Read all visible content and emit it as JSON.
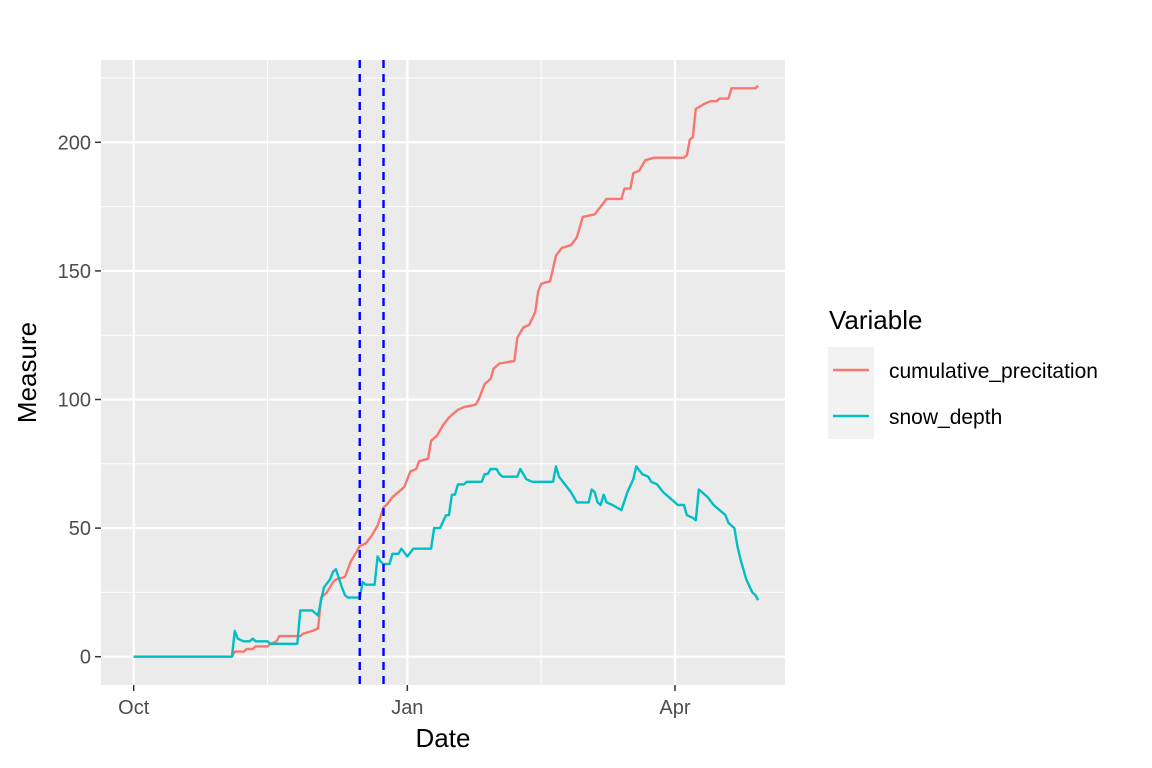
{
  "chart_data": {
    "type": "line",
    "title": "",
    "xlabel": "Date",
    "ylabel": "Measure",
    "xlim": [
      "2022-09-20",
      "2023-05-08"
    ],
    "ylim": [
      -11,
      232
    ],
    "x_ticks": [
      {
        "date": "2022-10-01",
        "label": "Oct"
      },
      {
        "date": "2023-01-01",
        "label": "Jan"
      },
      {
        "date": "2023-04-01",
        "label": "Apr"
      }
    ],
    "x_minor_ticks": [
      "2022-11-15",
      "2023-02-15"
    ],
    "y_ticks": [
      0,
      50,
      100,
      150,
      200
    ],
    "y_minor_ticks": [
      25,
      75,
      125,
      175,
      225
    ],
    "grid": true,
    "panel_background": "#ebebeb",
    "vlines": {
      "dates": [
        "2022-12-16",
        "2022-12-24"
      ],
      "color": "#0000ff",
      "style": "dashed"
    },
    "legend": {
      "title": "Variable",
      "position": "right"
    },
    "series": [
      {
        "name": "cumulative_precitation",
        "color": "#f8766d",
        "points": [
          [
            "2022-10-01",
            0
          ],
          [
            "2022-11-03",
            0
          ],
          [
            "2022-11-04",
            2
          ],
          [
            "2022-11-07",
            2
          ],
          [
            "2022-11-08",
            3
          ],
          [
            "2022-11-10",
            3
          ],
          [
            "2022-11-11",
            4
          ],
          [
            "2022-11-15",
            4
          ],
          [
            "2022-11-16",
            5
          ],
          [
            "2022-11-18",
            6
          ],
          [
            "2022-11-19",
            8
          ],
          [
            "2022-11-26",
            8
          ],
          [
            "2022-11-27",
            9
          ],
          [
            "2022-11-30",
            10
          ],
          [
            "2022-12-02",
            11
          ],
          [
            "2022-12-03",
            23
          ],
          [
            "2022-12-05",
            25
          ],
          [
            "2022-12-07",
            29
          ],
          [
            "2022-12-08",
            30
          ],
          [
            "2022-12-11",
            31
          ],
          [
            "2022-12-13",
            37
          ],
          [
            "2022-12-15",
            41
          ],
          [
            "2022-12-16",
            43
          ],
          [
            "2022-12-18",
            44
          ],
          [
            "2022-12-20",
            47
          ],
          [
            "2022-12-22",
            51
          ],
          [
            "2022-12-24",
            58
          ],
          [
            "2022-12-25",
            59
          ],
          [
            "2022-12-27",
            62
          ],
          [
            "2022-12-29",
            64
          ],
          [
            "2022-12-31",
            66
          ],
          [
            "2023-01-02",
            72
          ],
          [
            "2023-01-04",
            73
          ],
          [
            "2023-01-05",
            76
          ],
          [
            "2023-01-08",
            77
          ],
          [
            "2023-01-09",
            84
          ],
          [
            "2023-01-11",
            86
          ],
          [
            "2023-01-13",
            90
          ],
          [
            "2023-01-15",
            93
          ],
          [
            "2023-01-18",
            96
          ],
          [
            "2023-01-20",
            97
          ],
          [
            "2023-01-24",
            98
          ],
          [
            "2023-01-25",
            100
          ],
          [
            "2023-01-27",
            106
          ],
          [
            "2023-01-29",
            108
          ],
          [
            "2023-01-30",
            112
          ],
          [
            "2023-02-01",
            114
          ],
          [
            "2023-02-06",
            115
          ],
          [
            "2023-02-07",
            124
          ],
          [
            "2023-02-09",
            128
          ],
          [
            "2023-02-11",
            129
          ],
          [
            "2023-02-13",
            134
          ],
          [
            "2023-02-14",
            142
          ],
          [
            "2023-02-15",
            145
          ],
          [
            "2023-02-18",
            146
          ],
          [
            "2023-02-20",
            156
          ],
          [
            "2023-02-22",
            159
          ],
          [
            "2023-02-25",
            160
          ],
          [
            "2023-02-27",
            163
          ],
          [
            "2023-03-01",
            171
          ],
          [
            "2023-03-05",
            172
          ],
          [
            "2023-03-09",
            178
          ],
          [
            "2023-03-14",
            178
          ],
          [
            "2023-03-15",
            182
          ],
          [
            "2023-03-17",
            182
          ],
          [
            "2023-03-18",
            188
          ],
          [
            "2023-03-20",
            189
          ],
          [
            "2023-03-22",
            193
          ],
          [
            "2023-03-25",
            194
          ],
          [
            "2023-04-04",
            194
          ],
          [
            "2023-04-05",
            195
          ],
          [
            "2023-04-06",
            201
          ],
          [
            "2023-04-07",
            202
          ],
          [
            "2023-04-08",
            213
          ],
          [
            "2023-04-11",
            215
          ],
          [
            "2023-04-13",
            216
          ],
          [
            "2023-04-15",
            216
          ],
          [
            "2023-04-16",
            217
          ],
          [
            "2023-04-19",
            217
          ],
          [
            "2023-04-20",
            221
          ],
          [
            "2023-04-28",
            221
          ],
          [
            "2023-04-29",
            222
          ]
        ]
      },
      {
        "name": "snow_depth",
        "color": "#00bfc4",
        "points": [
          [
            "2022-10-01",
            0
          ],
          [
            "2022-11-03",
            0
          ],
          [
            "2022-11-04",
            10
          ],
          [
            "2022-11-05",
            7
          ],
          [
            "2022-11-07",
            6
          ],
          [
            "2022-11-09",
            6
          ],
          [
            "2022-11-10",
            7
          ],
          [
            "2022-11-11",
            6
          ],
          [
            "2022-11-15",
            6
          ],
          [
            "2022-11-16",
            5
          ],
          [
            "2022-11-25",
            5
          ],
          [
            "2022-11-26",
            18
          ],
          [
            "2022-11-30",
            18
          ],
          [
            "2022-12-02",
            16
          ],
          [
            "2022-12-03",
            22
          ],
          [
            "2022-12-04",
            27
          ],
          [
            "2022-12-06",
            30
          ],
          [
            "2022-12-07",
            33
          ],
          [
            "2022-12-08",
            34
          ],
          [
            "2022-12-10",
            27
          ],
          [
            "2022-12-11",
            24
          ],
          [
            "2022-12-12",
            23
          ],
          [
            "2022-12-16",
            23
          ],
          [
            "2022-12-17",
            29
          ],
          [
            "2022-12-18",
            28
          ],
          [
            "2022-12-21",
            28
          ],
          [
            "2022-12-22",
            39
          ],
          [
            "2022-12-23",
            37
          ],
          [
            "2022-12-24",
            36
          ],
          [
            "2022-12-26",
            36
          ],
          [
            "2022-12-27",
            40
          ],
          [
            "2022-12-29",
            40
          ],
          [
            "2022-12-30",
            42
          ],
          [
            "2023-01-01",
            39
          ],
          [
            "2023-01-03",
            42
          ],
          [
            "2023-01-09",
            42
          ],
          [
            "2023-01-10",
            50
          ],
          [
            "2023-01-12",
            50
          ],
          [
            "2023-01-14",
            55
          ],
          [
            "2023-01-15",
            55
          ],
          [
            "2023-01-16",
            63
          ],
          [
            "2023-01-17",
            63
          ],
          [
            "2023-01-18",
            67
          ],
          [
            "2023-01-20",
            67
          ],
          [
            "2023-01-21",
            68
          ],
          [
            "2023-01-26",
            68
          ],
          [
            "2023-01-27",
            71
          ],
          [
            "2023-01-28",
            71
          ],
          [
            "2023-01-29",
            73
          ],
          [
            "2023-01-31",
            73
          ],
          [
            "2023-02-01",
            71
          ],
          [
            "2023-02-02",
            70
          ],
          [
            "2023-02-07",
            70
          ],
          [
            "2023-02-08",
            73
          ],
          [
            "2023-02-09",
            71
          ],
          [
            "2023-02-10",
            69
          ],
          [
            "2023-02-12",
            68
          ],
          [
            "2023-02-19",
            68
          ],
          [
            "2023-02-20",
            74
          ],
          [
            "2023-02-21",
            70
          ],
          [
            "2023-02-23",
            67
          ],
          [
            "2023-02-25",
            64
          ],
          [
            "2023-02-27",
            60
          ],
          [
            "2023-03-03",
            60
          ],
          [
            "2023-03-04",
            65
          ],
          [
            "2023-03-05",
            64
          ],
          [
            "2023-03-06",
            60
          ],
          [
            "2023-03-07",
            59
          ],
          [
            "2023-03-08",
            63
          ],
          [
            "2023-03-09",
            60
          ],
          [
            "2023-03-11",
            59
          ],
          [
            "2023-03-14",
            57
          ],
          [
            "2023-03-16",
            64
          ],
          [
            "2023-03-18",
            69
          ],
          [
            "2023-03-19",
            74
          ],
          [
            "2023-03-21",
            71
          ],
          [
            "2023-03-23",
            70
          ],
          [
            "2023-03-24",
            68
          ],
          [
            "2023-03-26",
            67
          ],
          [
            "2023-03-28",
            64
          ],
          [
            "2023-03-31",
            61
          ],
          [
            "2023-04-02",
            59
          ],
          [
            "2023-04-04",
            59
          ],
          [
            "2023-04-05",
            55
          ],
          [
            "2023-04-07",
            54
          ],
          [
            "2023-04-08",
            53
          ],
          [
            "2023-04-09",
            65
          ],
          [
            "2023-04-12",
            62
          ],
          [
            "2023-04-14",
            59
          ],
          [
            "2023-04-18",
            55
          ],
          [
            "2023-04-19",
            52
          ],
          [
            "2023-04-21",
            50
          ],
          [
            "2023-04-22",
            43
          ],
          [
            "2023-04-23",
            38
          ],
          [
            "2023-04-25",
            30
          ],
          [
            "2023-04-27",
            25
          ],
          [
            "2023-04-28",
            24
          ],
          [
            "2023-04-29",
            22
          ]
        ]
      }
    ]
  }
}
